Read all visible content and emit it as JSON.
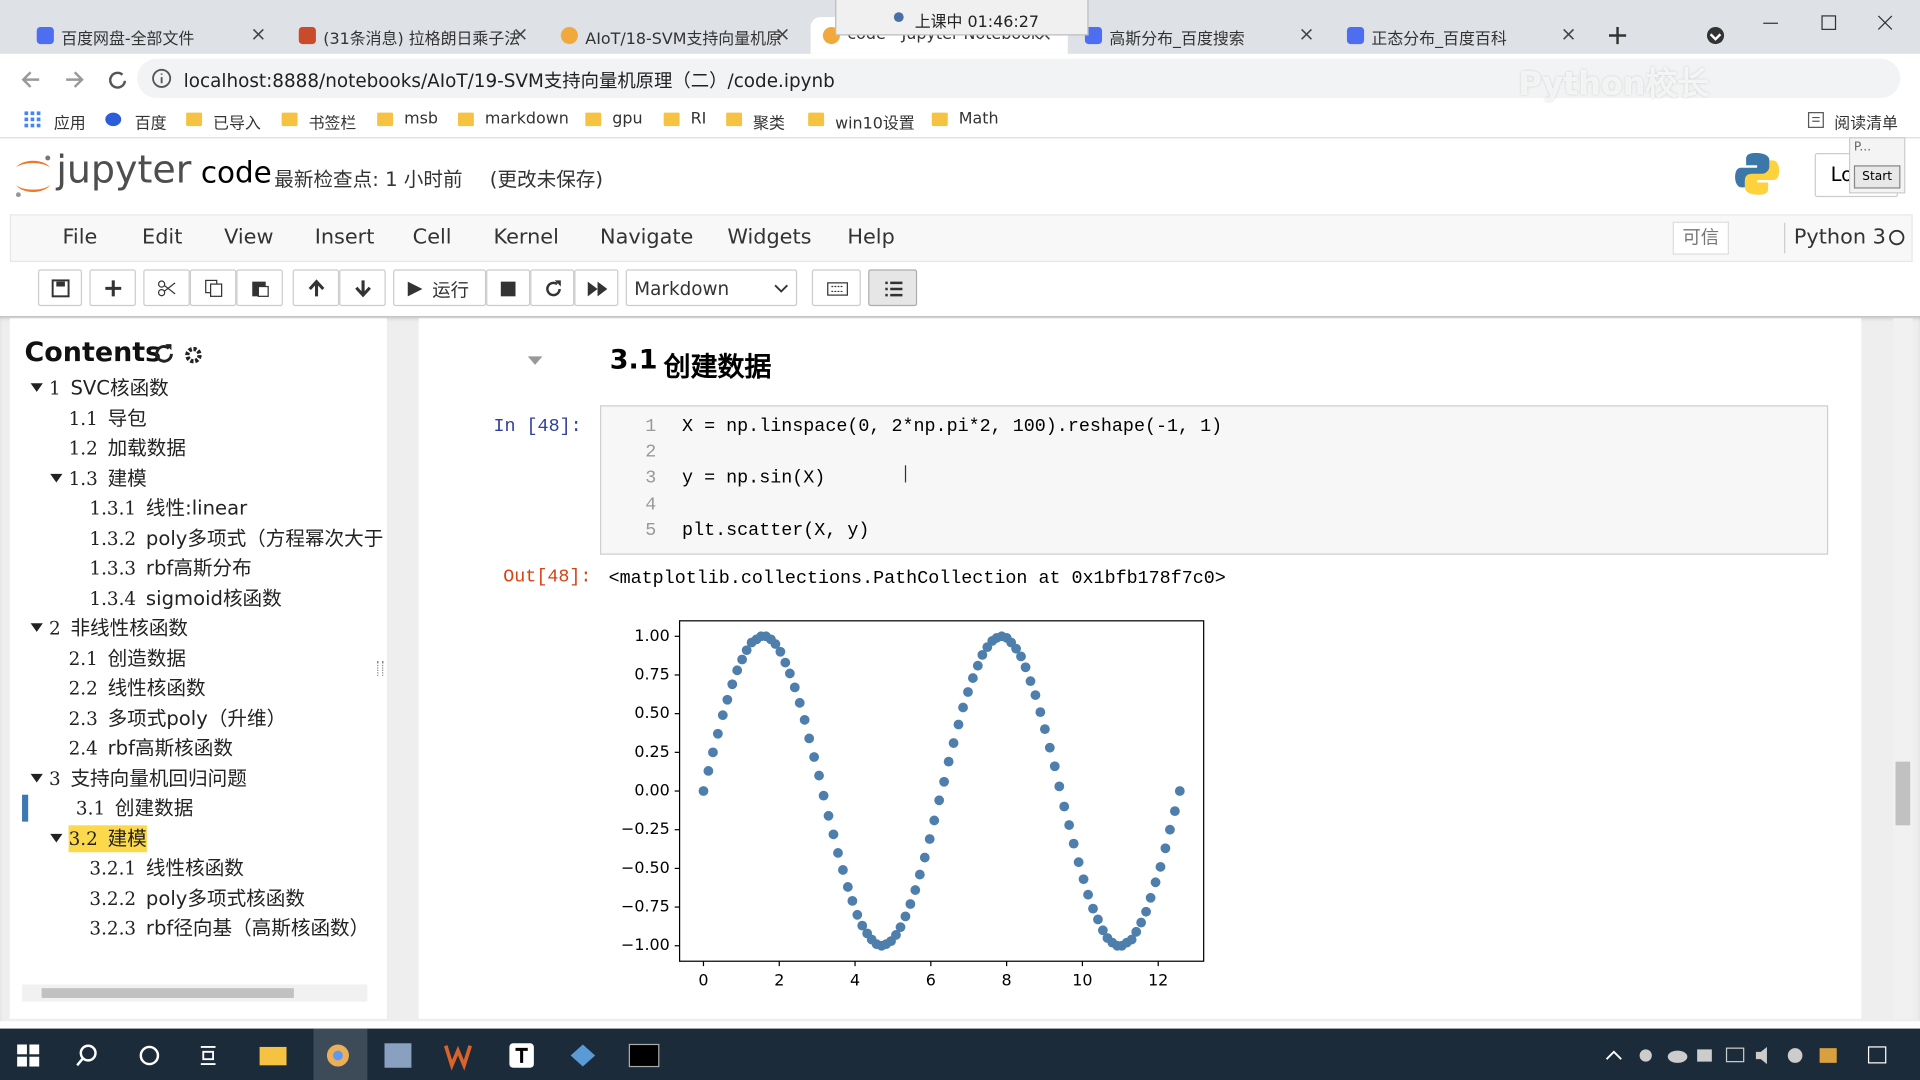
{
  "browser": {
    "tabs": [
      "百度网盘-全部文件",
      "(31条消息) 拉格朗日乘子法",
      "AIoT/18-SVM支持向量机原",
      "code - Jupyter Notebook",
      "高斯分布_百度搜索",
      "正态分布_百度百科"
    ],
    "recording": "上课中 01:46:27",
    "url": "localhost:8888/notebooks/AIoT/19-SVM支持向量机原理（二）/code.ipynb",
    "watermark": "Python校长",
    "bookmarks": [
      "应用",
      "百度",
      "已导入",
      "书签栏",
      "msb",
      "markdown",
      "gpu",
      "RI",
      "聚类",
      "win10设置",
      "Math"
    ],
    "reading_list": "阅读清单"
  },
  "header": {
    "logo": "jupyter",
    "notebook_name": "code",
    "checkpoint": "最新检查点: 1 小时前",
    "unsaved": "(更改未保存)",
    "logout": "Lo",
    "widget": "P...",
    "widget_button": "Start"
  },
  "menu": {
    "items": [
      "File",
      "Edit",
      "View",
      "Insert",
      "Cell",
      "Kernel",
      "Navigate",
      "Widgets",
      "Help"
    ],
    "trusted": "可信",
    "kernel": "Python 3"
  },
  "toolbar": {
    "run": "运行",
    "cell_type": "Markdown"
  },
  "toc": {
    "title": "Contents",
    "current": "3.1",
    "highlighted": "3.2",
    "items": [
      {
        "num": "1",
        "text": "SVC核函数"
      },
      {
        "num": "1.1",
        "text": "导包"
      },
      {
        "num": "1.2",
        "text": "加载数据"
      },
      {
        "num": "1.3",
        "text": "建模"
      },
      {
        "num": "1.3.1",
        "text": "线性:linear"
      },
      {
        "num": "1.3.2",
        "text": "poly多项式（方程幂次大于"
      },
      {
        "num": "1.3.3",
        "text": "rbf高斯分布"
      },
      {
        "num": "1.3.4",
        "text": "sigmoid核函数"
      },
      {
        "num": "2",
        "text": "非线性核函数"
      },
      {
        "num": "2.1",
        "text": "创造数据"
      },
      {
        "num": "2.2",
        "text": "线性核函数"
      },
      {
        "num": "2.3",
        "text": "多项式poly（升维）"
      },
      {
        "num": "2.4",
        "text": "rbf高斯核函数"
      },
      {
        "num": "3",
        "text": "支持向量机回归问题"
      },
      {
        "num": "3.1",
        "text": "创建数据"
      },
      {
        "num": "3.2",
        "text": "建模"
      },
      {
        "num": "3.2.1",
        "text": "线性核函数"
      },
      {
        "num": "3.2.2",
        "text": "poly多项式核函数"
      },
      {
        "num": "3.2.3",
        "text": "rbf径向基（高斯核函数）"
      }
    ]
  },
  "notebook": {
    "heading_num": "3.1",
    "heading": "创建数据",
    "in_prompt": "In [48]:",
    "line_numbers": [
      1,
      2,
      3,
      4,
      5
    ],
    "code": [
      {
        "line": 1,
        "text": "X = np.linspace(0, 2*np.pi*2, 100).reshape(-1, 1)"
      },
      {
        "line": 3,
        "text": "y = np.sin(X)"
      },
      {
        "line": 5,
        "text": "plt.scatter(X, y)"
      }
    ],
    "out_prompt": "Out[48]:",
    "output": "<matplotlib.collections.PathCollection at 0x1bfb178f7c0>"
  },
  "chart_data": {
    "type": "scatter",
    "color": "#4d7eac",
    "x": [
      0,
      0.13,
      0.25,
      0.38,
      0.51,
      0.63,
      0.76,
      0.89,
      1.02,
      1.14,
      1.27,
      1.4,
      1.52,
      1.65,
      1.78,
      1.9,
      2.03,
      2.16,
      2.28,
      2.41,
      2.54,
      2.67,
      2.79,
      2.92,
      3.05,
      3.17,
      3.3,
      3.43,
      3.55,
      3.68,
      3.81,
      3.93,
      4.06,
      4.19,
      4.32,
      4.44,
      4.57,
      4.7,
      4.82,
      4.95,
      5.08,
      5.2,
      5.33,
      5.46,
      5.59,
      5.71,
      5.84,
      5.97,
      6.09,
      6.22,
      6.35,
      6.47,
      6.6,
      6.73,
      6.85,
      6.98,
      7.11,
      7.24,
      7.36,
      7.49,
      7.62,
      7.74,
      7.87,
      8.0,
      8.12,
      8.25,
      8.38,
      8.5,
      8.63,
      8.76,
      8.89,
      9.01,
      9.14,
      9.27,
      9.39,
      9.52,
      9.65,
      9.77,
      9.9,
      10.03,
      10.15,
      10.28,
      10.41,
      10.54,
      10.66,
      10.79,
      10.92,
      11.04,
      11.17,
      11.3,
      11.42,
      11.55,
      11.68,
      11.8,
      11.93,
      12.06,
      12.19,
      12.31,
      12.44,
      12.57
    ],
    "values": [
      0,
      0.13,
      0.25,
      0.37,
      0.49,
      0.59,
      0.69,
      0.78,
      0.85,
      0.91,
      0.96,
      0.98,
      1.0,
      1.0,
      0.98,
      0.95,
      0.9,
      0.83,
      0.76,
      0.67,
      0.57,
      0.46,
      0.34,
      0.22,
      0.1,
      -0.03,
      -0.16,
      -0.28,
      -0.4,
      -0.51,
      -0.62,
      -0.71,
      -0.8,
      -0.87,
      -0.92,
      -0.96,
      -0.99,
      -1.0,
      -0.99,
      -0.97,
      -0.93,
      -0.88,
      -0.81,
      -0.73,
      -0.64,
      -0.54,
      -0.43,
      -0.31,
      -0.19,
      -0.06,
      0.06,
      0.19,
      0.31,
      0.43,
      0.54,
      0.64,
      0.73,
      0.81,
      0.88,
      0.93,
      0.97,
      0.99,
      1.0,
      0.99,
      0.96,
      0.92,
      0.87,
      0.8,
      0.71,
      0.62,
      0.51,
      0.4,
      0.28,
      0.16,
      0.03,
      -0.1,
      -0.22,
      -0.34,
      -0.46,
      -0.57,
      -0.67,
      -0.76,
      -0.83,
      -0.9,
      -0.95,
      -0.98,
      -1.0,
      -1.0,
      -0.98,
      -0.96,
      -0.91,
      -0.85,
      -0.78,
      -0.69,
      -0.59,
      -0.49,
      -0.37,
      -0.25,
      -0.13,
      0
    ],
    "xlim": [
      -0.63,
      13.2
    ],
    "ylim": [
      -1.1,
      1.1
    ],
    "xticks": [
      0,
      2,
      4,
      6,
      8,
      10,
      12
    ],
    "yticks": [
      {
        "value": 1,
        "label": "1.00"
      },
      {
        "value": 0.75,
        "label": "0.75"
      },
      {
        "value": 0.5,
        "label": "0.50"
      },
      {
        "value": 0.25,
        "label": "0.25"
      },
      {
        "value": 0,
        "label": "0.00"
      },
      {
        "value": -0.25,
        "label": "−0.25"
      },
      {
        "value": -0.5,
        "label": "−0.50"
      },
      {
        "value": -0.75,
        "label": "−0.75"
      },
      {
        "value": -1,
        "label": "−1.00"
      }
    ]
  }
}
